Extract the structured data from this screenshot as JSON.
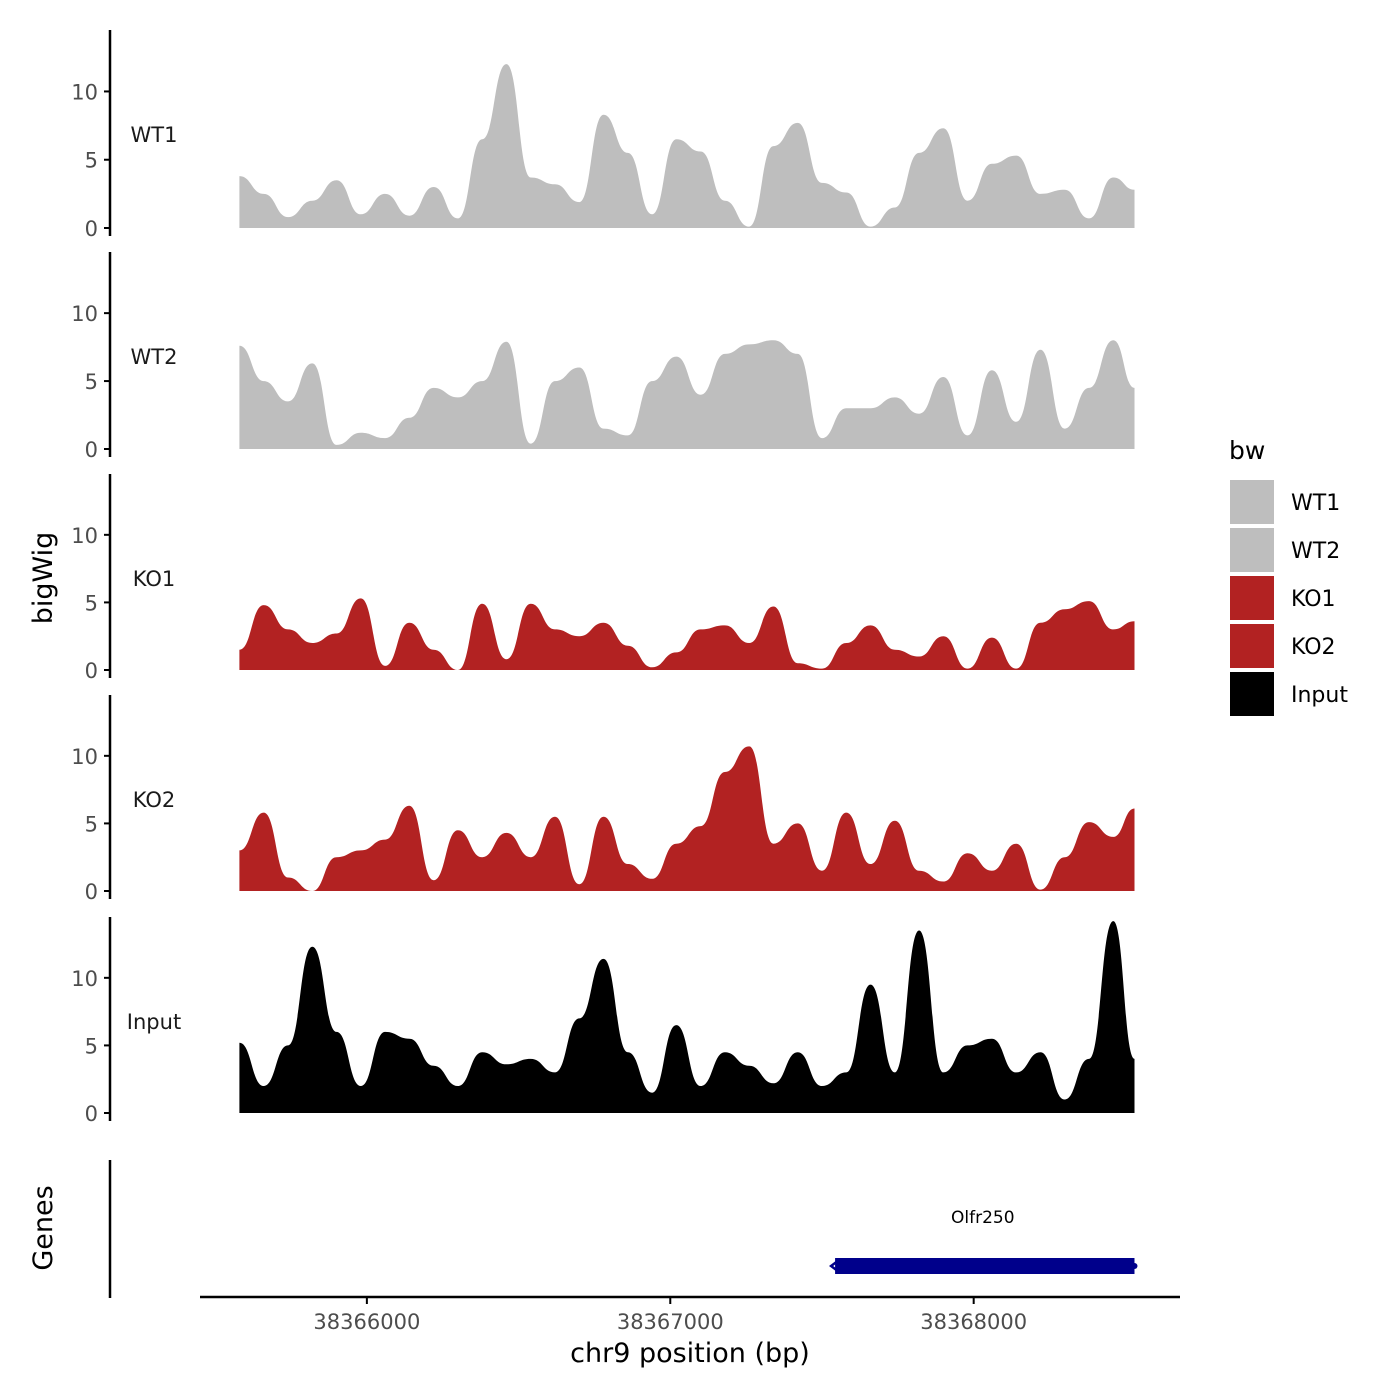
{
  "chart_data": {
    "type": "area",
    "title": "",
    "xlabel": "chr9 position (bp)",
    "ylabel": "bigWig",
    "genes_label": "Genes",
    "xlim": [
      38365450,
      38368680
    ],
    "x_ticks": [
      38366000,
      38367000,
      38368000
    ],
    "x_tick_labels": [
      "38366000",
      "38367000",
      "38368000"
    ],
    "ylim": [
      0,
      14.5
    ],
    "y_ticks": [
      0,
      5,
      10
    ],
    "y_tick_labels": [
      "0",
      "5",
      "10"
    ],
    "legend": {
      "title": "bw",
      "position": "right",
      "entries": [
        {
          "label": "WT1",
          "color": "#bebebe"
        },
        {
          "label": "WT2",
          "color": "#bebebe"
        },
        {
          "label": "KO1",
          "color": "#b22222"
        },
        {
          "label": "KO2",
          "color": "#b22222"
        },
        {
          "label": "Input",
          "color": "#000000"
        }
      ]
    },
    "x": [
      38365580,
      38365660,
      38365740,
      38365820,
      38365900,
      38365980,
      38366060,
      38366140,
      38366220,
      38366300,
      38366380,
      38366460,
      38366540,
      38366620,
      38366700,
      38366780,
      38366860,
      38366940,
      38367020,
      38367100,
      38367180,
      38367260,
      38367340,
      38367420,
      38367500,
      38367580,
      38367660,
      38367740,
      38367820,
      38367900,
      38367980,
      38368060,
      38368140,
      38368220,
      38368300,
      38368380,
      38368460,
      38368530
    ],
    "series": [
      {
        "name": "WT1",
        "color": "#bebebe",
        "values": [
          3.8,
          2.5,
          0.8,
          2.0,
          3.5,
          1.0,
          2.5,
          0.9,
          3.0,
          0.7,
          6.5,
          12.0,
          3.7,
          3.2,
          1.9,
          8.3,
          5.5,
          1.0,
          6.5,
          5.6,
          2.0,
          0.1,
          6.0,
          7.7,
          3.3,
          2.6,
          0.1,
          1.5,
          5.5,
          7.3,
          2.0,
          4.7,
          5.3,
          2.5,
          2.8,
          0.7,
          3.7,
          2.8
        ]
      },
      {
        "name": "WT2",
        "color": "#bebebe",
        "values": [
          7.6,
          5.0,
          3.5,
          6.3,
          0.3,
          1.2,
          0.8,
          2.3,
          4.5,
          3.8,
          5.0,
          7.9,
          0.4,
          5.0,
          6.0,
          1.5,
          1.0,
          5.0,
          6.8,
          4.0,
          7.0,
          7.7,
          8.0,
          7.0,
          0.8,
          3.0,
          3.0,
          3.8,
          2.6,
          5.3,
          1.0,
          5.8,
          2.0,
          7.3,
          1.5,
          4.5,
          8.0,
          4.5
        ]
      },
      {
        "name": "KO1",
        "color": "#b22222",
        "values": [
          1.5,
          4.8,
          3.0,
          2.0,
          2.7,
          5.3,
          0.3,
          3.5,
          1.5,
          0.0,
          4.9,
          0.8,
          4.9,
          3.0,
          2.5,
          3.5,
          1.8,
          0.2,
          1.3,
          3.0,
          3.3,
          2.0,
          4.7,
          0.5,
          0.1,
          2.0,
          3.3,
          1.5,
          1.0,
          2.5,
          0.1,
          2.4,
          0.1,
          3.5,
          4.5,
          5.1,
          3.0,
          3.6
        ]
      },
      {
        "name": "KO2",
        "color": "#b22222",
        "values": [
          3.0,
          5.8,
          1.0,
          0.0,
          2.5,
          3.0,
          3.8,
          6.3,
          0.8,
          4.5,
          2.5,
          4.3,
          2.5,
          5.5,
          0.5,
          5.5,
          2.0,
          0.9,
          3.5,
          4.8,
          8.8,
          10.7,
          3.5,
          5.0,
          1.5,
          5.8,
          2.0,
          5.2,
          1.5,
          0.7,
          2.8,
          1.5,
          3.5,
          0.1,
          2.5,
          5.1,
          4.0,
          6.1
        ]
      },
      {
        "name": "Input",
        "color": "#000000",
        "values": [
          5.2,
          2.0,
          5.0,
          12.3,
          6.0,
          2.0,
          6.0,
          5.5,
          3.5,
          2.0,
          4.5,
          3.6,
          4.0,
          3.0,
          7.0,
          11.4,
          4.5,
          1.5,
          6.5,
          2.0,
          4.5,
          3.5,
          2.2,
          4.5,
          2.0,
          3.0,
          9.5,
          3.0,
          13.5,
          3.0,
          5.0,
          5.5,
          3.0,
          4.5,
          1.0,
          4.0,
          14.2,
          4.0
        ]
      }
    ],
    "genes": [
      {
        "name": "Olfr250",
        "start": 38367530,
        "end": 38368530,
        "strand": "-",
        "color": "#00008b"
      }
    ]
  }
}
